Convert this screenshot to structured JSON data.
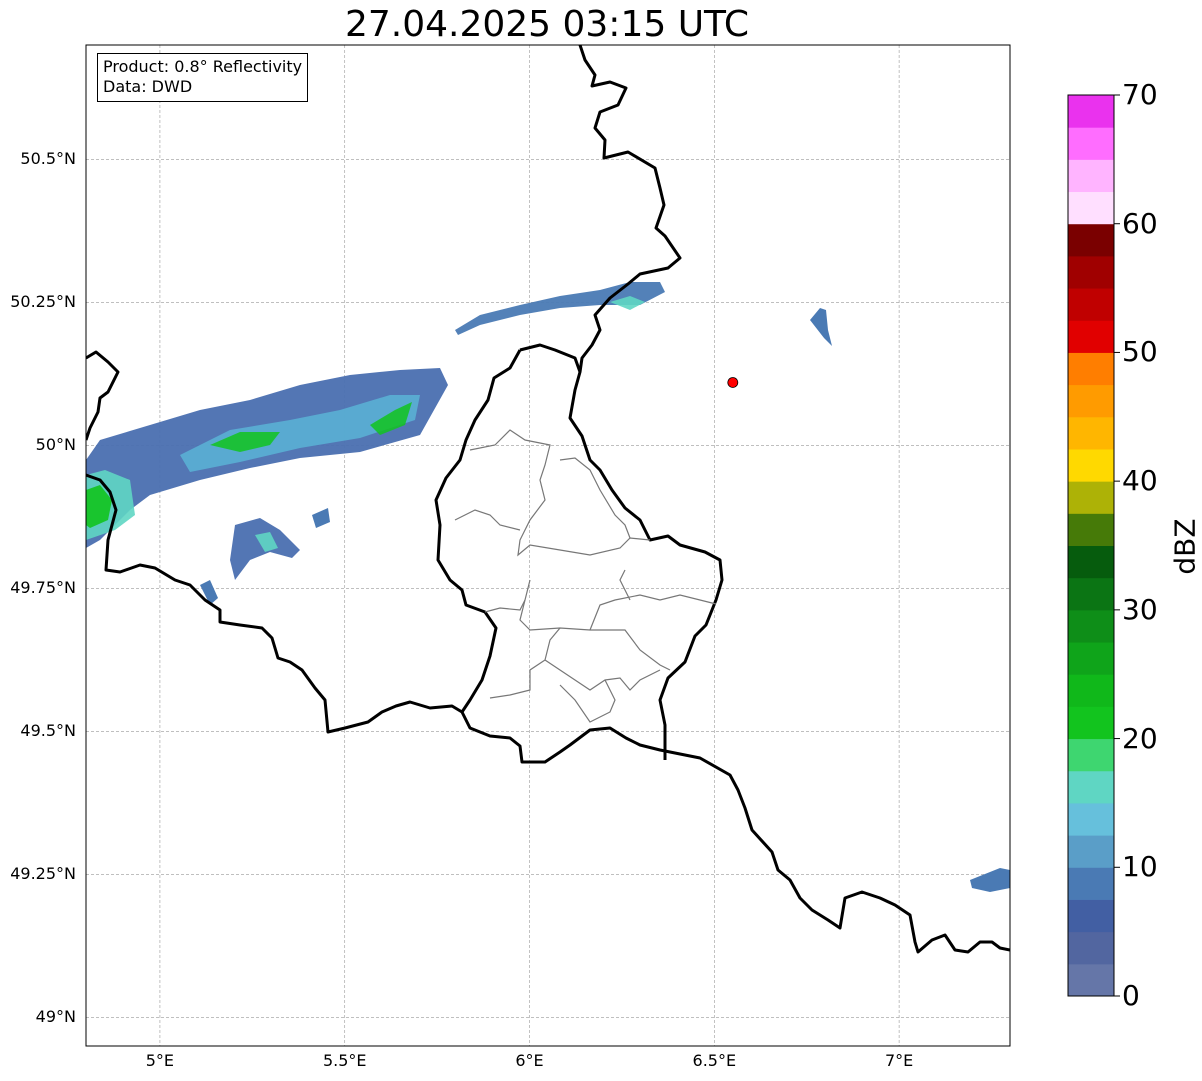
{
  "title": "27.04.2025 03:15 UTC",
  "info_box": {
    "product": "Product: 0.8° Reflectivity",
    "source": "Data: DWD"
  },
  "axes": {
    "lon_range": [
      4.8,
      7.3
    ],
    "lat_range": [
      48.95,
      50.7
    ],
    "x_ticks": [
      {
        "value": 5.0,
        "label": "5°E"
      },
      {
        "value": 5.5,
        "label": "5.5°E"
      },
      {
        "value": 6.0,
        "label": "6°E"
      },
      {
        "value": 6.5,
        "label": "6.5°E"
      },
      {
        "value": 7.0,
        "label": "7°E"
      }
    ],
    "y_ticks": [
      {
        "value": 50.5,
        "label": "50.5°N"
      },
      {
        "value": 50.25,
        "label": "50.25°N"
      },
      {
        "value": 50.0,
        "label": "50°N"
      },
      {
        "value": 49.75,
        "label": "49.75°N"
      },
      {
        "value": 49.5,
        "label": "49.5°N"
      },
      {
        "value": 49.25,
        "label": "49.25°N"
      },
      {
        "value": 49.0,
        "label": "49°N"
      }
    ],
    "grid": true
  },
  "radar_site": {
    "lon": 6.55,
    "lat": 50.11,
    "color": "#ff0000"
  },
  "colorbar": {
    "unit": "dBZ",
    "range": [
      0,
      70
    ],
    "tick_labels": [
      {
        "value": 0,
        "label": "0"
      },
      {
        "value": 10,
        "label": "10"
      },
      {
        "value": 20,
        "label": "20"
      },
      {
        "value": 30,
        "label": "30"
      },
      {
        "value": 40,
        "label": "40"
      },
      {
        "value": 50,
        "label": "50"
      },
      {
        "value": 60,
        "label": "60"
      },
      {
        "value": 70,
        "label": "70"
      }
    ],
    "colors": [
      "#6576a8",
      "#5266a0",
      "#425fa3",
      "#4a7ab4",
      "#5a9ec8",
      "#66c0dc",
      "#5fd6c3",
      "#3ed670",
      "#12c41e",
      "#10b81a",
      "#0fa41a",
      "#0e8e18",
      "#0b7514",
      "#065c0d",
      "#467a08",
      "#adb206",
      "#ffd900",
      "#ffb600",
      "#ff9b00",
      "#ff7e00",
      "#e10000",
      "#c00000",
      "#a00000",
      "#7a0000",
      "#ffdfff",
      "#ffb4ff",
      "#ff6dff",
      "#ea32ee"
    ]
  }
}
